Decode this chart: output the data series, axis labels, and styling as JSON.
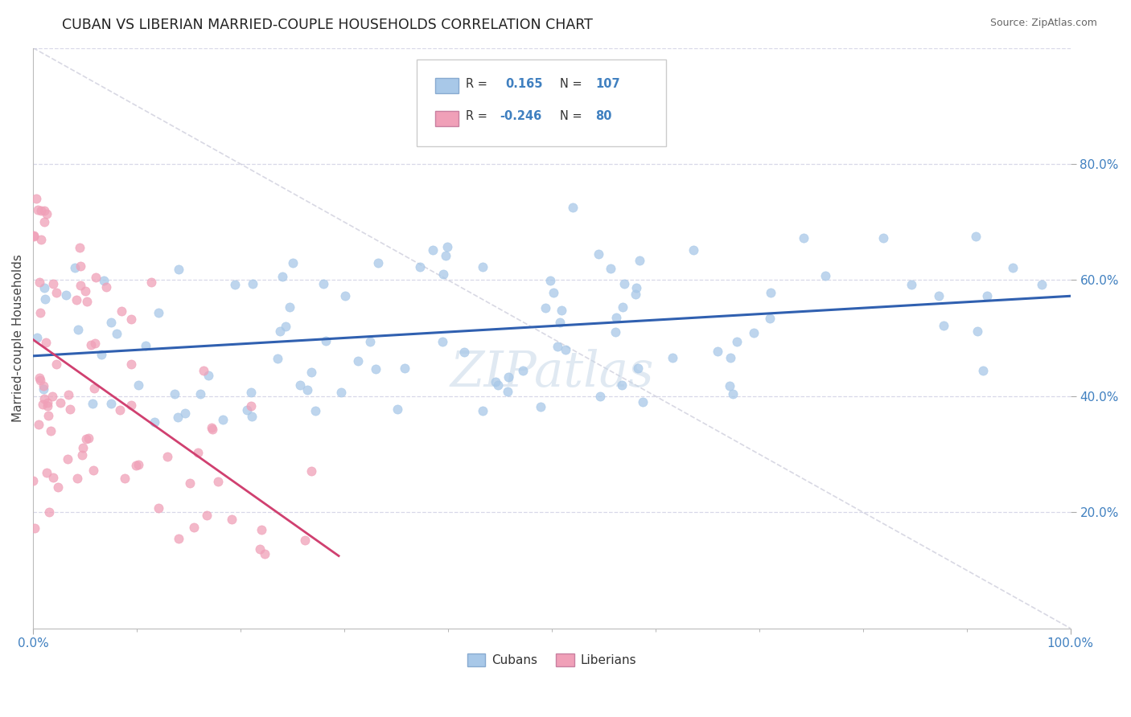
{
  "title": "CUBAN VS LIBERIAN MARRIED-COUPLE HOUSEHOLDS CORRELATION CHART",
  "source_text": "Source: ZipAtlas.com",
  "ylabel": "Married-couple Households",
  "cuban_color": "#a8c8e8",
  "liberian_color": "#f0a0b8",
  "cuban_line_color": "#3060b0",
  "liberian_line_color": "#d04070",
  "diagonal_color": "#c8c8d8",
  "background_color": "#ffffff",
  "grid_color": "#d8d8e8",
  "tick_color": "#4080c0",
  "cuban_r": 0.165,
  "cuban_n": 107,
  "liberian_r": -0.246,
  "liberian_n": 80
}
